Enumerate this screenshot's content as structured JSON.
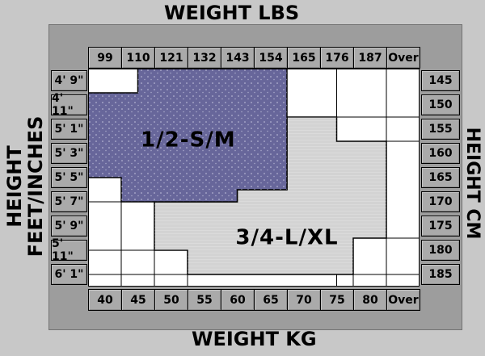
{
  "page": {
    "top_title": "WEIGHT LBS",
    "bottom_title": "WEIGHT KG",
    "left_title_line1": "HEIGHT",
    "left_title_line2": "FEET/INCHES",
    "right_title": "HEIGHT CM"
  },
  "colors": {
    "page_bg": "#c8c8c8",
    "panel_bg": "#9d9d9d",
    "label_cell_bg": "#aaaaaa",
    "grid_border": "#000000",
    "empty_cell": "#ffffff",
    "region_sm": "#67669a",
    "region_lxl": "#d3d3d3",
    "text": "#000000"
  },
  "chart_data": {
    "type": "heatmap",
    "title": "Hosiery size chart: weight vs height size regions",
    "x_axis_top": {
      "label": "WEIGHT LBS",
      "ticks": [
        "99",
        "110",
        "121",
        "132",
        "143",
        "154",
        "165",
        "176",
        "187",
        "Over"
      ]
    },
    "x_axis_bottom": {
      "label": "WEIGHT KG",
      "ticks": [
        "40",
        "45",
        "50",
        "55",
        "60",
        "65",
        "70",
        "75",
        "80",
        "Over"
      ]
    },
    "y_axis_left": {
      "label": "HEIGHT FEET/INCHES",
      "ticks": [
        "4' 9\"",
        "4' 11\"",
        "5' 1\"",
        "5' 3\"",
        "5' 5\"",
        "5' 7\"",
        "5' 9\"",
        "5' 11\"",
        "6' 1\""
      ]
    },
    "y_axis_right": {
      "label": "HEIGHT CM",
      "ticks": [
        "145",
        "150",
        "155",
        "160",
        "165",
        "170",
        "175",
        "180",
        "185"
      ]
    },
    "grid": {
      "columns": 10,
      "rows": 9
    },
    "legend_position": "in-plot-labels",
    "regions": [
      {
        "id": "1-2-s-m",
        "label": "1/2-S/M",
        "color": "#67669a",
        "texture": "white-dots",
        "polygon_grid_units": [
          [
            1.5,
            0
          ],
          [
            6,
            0
          ],
          [
            6,
            5
          ],
          [
            4.5,
            5
          ],
          [
            4.5,
            5.5
          ],
          [
            1,
            5.5
          ],
          [
            1,
            4.5
          ],
          [
            0,
            4.5
          ],
          [
            0,
            1
          ],
          [
            1.5,
            1
          ]
        ],
        "label_pos_grid_units": [
          3.02,
          2.92
        ]
      },
      {
        "id": "3-4-l-xl",
        "label": "3/4-L/XL",
        "color": "#d3d3d3",
        "texture": "h-stripes",
        "polygon_grid_units": [
          [
            2,
            5.5
          ],
          [
            4.5,
            5.5
          ],
          [
            4.5,
            5
          ],
          [
            6,
            5
          ],
          [
            6,
            2
          ],
          [
            7.5,
            2
          ],
          [
            7.5,
            3
          ],
          [
            9,
            3
          ],
          [
            9,
            7
          ],
          [
            8,
            7
          ],
          [
            8,
            8.5
          ],
          [
            3,
            8.5
          ],
          [
            3,
            7.5
          ],
          [
            2,
            7.5
          ]
        ],
        "label_pos_grid_units": [
          6.0,
          6.95
        ]
      }
    ],
    "no_size_cells_grid_units": [
      [
        0,
        0,
        1.5,
        1
      ],
      [
        6,
        0,
        1.5,
        2
      ],
      [
        7.5,
        0,
        1.5,
        2
      ],
      [
        9,
        0,
        1,
        2
      ],
      [
        7.5,
        2,
        1.5,
        1
      ],
      [
        9,
        2,
        1,
        1
      ],
      [
        9,
        3,
        1,
        4
      ],
      [
        8,
        7,
        1,
        1.5
      ],
      [
        9,
        7,
        1,
        1.5
      ],
      [
        0,
        4.5,
        1,
        1
      ],
      [
        0,
        5.5,
        1,
        2
      ],
      [
        1,
        5.5,
        1,
        2
      ],
      [
        0,
        7.5,
        1,
        1
      ],
      [
        1,
        7.5,
        1,
        1
      ],
      [
        2,
        7.5,
        1,
        1
      ],
      [
        0,
        8.5,
        1,
        0.5
      ],
      [
        1,
        8.5,
        1,
        0.5
      ],
      [
        2,
        8.5,
        1,
        0.5
      ],
      [
        3,
        8.5,
        4.5,
        0.5
      ],
      [
        7.5,
        8.5,
        0.5,
        0.5
      ],
      [
        8,
        8.5,
        1,
        0.5
      ],
      [
        9,
        8.5,
        1,
        0.5
      ]
    ]
  }
}
